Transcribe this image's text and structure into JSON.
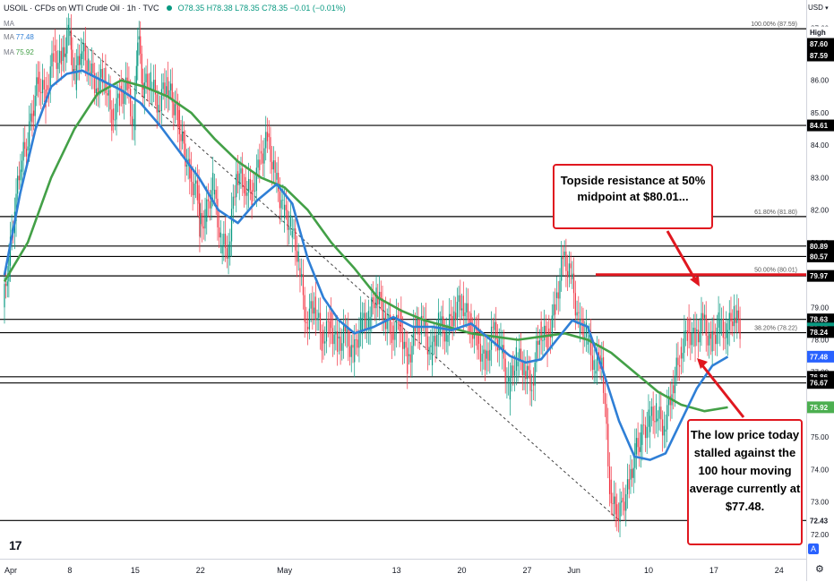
{
  "header": {
    "symbol_title": "USOIL · CFDs on WTI Crude Oil · 1h · TVC",
    "ohlc": "O78.35 H78.38 L78.35 C78.35 −0.01 (−0.01%)",
    "currency": "USD",
    "ma_rows": [
      {
        "label": "MA",
        "value": ""
      },
      {
        "label": "MA",
        "value": "77.48"
      },
      {
        "label": "MA",
        "value": "75.92"
      }
    ]
  },
  "chart_data": {
    "type": "candlestick",
    "price_range": [
      71.5,
      88.2
    ],
    "time_range_hours": [
      0,
      1740
    ],
    "price_ticks": [
      "87.60",
      "87.00",
      "86.00",
      "85.00",
      "84.00",
      "83.00",
      "82.00",
      "81.00",
      "80.00",
      "79.00",
      "78.00",
      "77.00",
      "76.00",
      "75.00",
      "74.00",
      "73.00",
      "72.00"
    ],
    "time_ticks": [
      {
        "label": "Apr",
        "h": 0
      },
      {
        "label": "8",
        "h": 168
      },
      {
        "label": "15",
        "h": 336
      },
      {
        "label": "22",
        "h": 504
      },
      {
        "label": "May",
        "h": 720
      },
      {
        "label": "13",
        "h": 1008
      },
      {
        "label": "20",
        "h": 1176
      },
      {
        "label": "27",
        "h": 1344
      },
      {
        "label": "Jun",
        "h": 1464
      },
      {
        "label": "10",
        "h": 1656
      },
      {
        "label": "17",
        "h": 1824
      },
      {
        "label": "24",
        "h": 1992
      }
    ],
    "price_badges": [
      {
        "label": "High",
        "price": 87.6,
        "color": "#ffffff",
        "text": "#131722"
      },
      {
        "label": "87.60",
        "price": 87.6,
        "color": "#000000",
        "text": "#ffffff"
      },
      {
        "label": "87.59",
        "price": 87.59,
        "color": "#000000",
        "text": "#ffffff"
      },
      {
        "label": "84.61",
        "price": 84.61,
        "color": "#000000",
        "text": "#ffffff"
      },
      {
        "label": "80.89",
        "price": 80.89,
        "color": "#000000",
        "text": "#ffffff"
      },
      {
        "label": "80.57",
        "price": 80.57,
        "color": "#000000",
        "text": "#ffffff"
      },
      {
        "label": "79.97",
        "price": 79.97,
        "color": "#000000",
        "text": "#ffffff"
      },
      {
        "label": "78.63",
        "price": 78.63,
        "color": "#000000",
        "text": "#ffffff"
      },
      {
        "label": "78.35",
        "price": 78.35,
        "color": "#089981",
        "text": "#ffffff"
      },
      {
        "label": "78.24",
        "price": 78.24,
        "color": "#000000",
        "text": "#ffffff"
      },
      {
        "label": "77.48",
        "price": 77.48,
        "color": "#2962ff",
        "text": "#ffffff"
      },
      {
        "label": "76.86",
        "price": 76.86,
        "color": "#000000",
        "text": "#ffffff"
      },
      {
        "label": "76.67",
        "price": 76.67,
        "color": "#000000",
        "text": "#ffffff"
      },
      {
        "label": "75.92",
        "price": 75.92,
        "color": "#4caf50",
        "text": "#ffffff"
      },
      {
        "label": "72.43",
        "price": 72.43,
        "color": "#ffffff",
        "text": "#131722"
      }
    ],
    "fib_levels": [
      {
        "label": "100.00% (87.59)",
        "price": 87.59
      },
      {
        "label": "61.80% (81.80)",
        "price": 81.8
      },
      {
        "label": "50.00% (80.01)",
        "price": 80.01
      },
      {
        "label": "38.20% (78.22)",
        "price": 78.22
      }
    ],
    "horizontal_lines": [
      87.59,
      84.61,
      81.8,
      80.89,
      80.57,
      79.97,
      78.63,
      78.22,
      76.86,
      76.67,
      72.43
    ],
    "trendline": [
      [
        168,
        87.5
      ],
      [
        1584,
        72.4
      ]
    ],
    "red_line_price": 80.01,
    "price_path": [
      [
        0,
        79.0
      ],
      [
        15,
        80.5
      ],
      [
        30,
        82.0
      ],
      [
        45,
        83.5
      ],
      [
        60,
        84.0
      ],
      [
        75,
        85.0
      ],
      [
        90,
        86.0
      ],
      [
        110,
        85.5
      ],
      [
        130,
        86.8
      ],
      [
        150,
        86.5
      ],
      [
        168,
        87.5
      ],
      [
        185,
        86.0
      ],
      [
        200,
        87.0
      ],
      [
        220,
        86.5
      ],
      [
        240,
        85.8
      ],
      [
        260,
        86.2
      ],
      [
        280,
        84.8
      ],
      [
        300,
        85.5
      ],
      [
        320,
        85.8
      ],
      [
        336,
        84.5
      ],
      [
        346,
        87.5
      ],
      [
        360,
        85.8
      ],
      [
        380,
        86.0
      ],
      [
        400,
        85.2
      ],
      [
        420,
        86.0
      ],
      [
        450,
        84.8
      ],
      [
        480,
        83.0
      ],
      [
        500,
        82.5
      ],
      [
        504,
        81.5
      ],
      [
        520,
        81.8
      ],
      [
        540,
        82.8
      ],
      [
        560,
        81.0
      ],
      [
        580,
        80.8
      ],
      [
        600,
        83.2
      ],
      [
        620,
        82.8
      ],
      [
        640,
        82.5
      ],
      [
        660,
        83.5
      ],
      [
        680,
        84.2
      ],
      [
        700,
        83.0
      ],
      [
        720,
        82.0
      ],
      [
        740,
        81.5
      ],
      [
        760,
        80.5
      ],
      [
        780,
        78.5
      ],
      [
        800,
        79.2
      ],
      [
        820,
        78.0
      ],
      [
        840,
        78.5
      ],
      [
        860,
        77.8
      ],
      [
        880,
        78.2
      ],
      [
        900,
        77.5
      ],
      [
        920,
        78.5
      ],
      [
        940,
        78.6
      ],
      [
        960,
        79.5
      ],
      [
        980,
        78.8
      ],
      [
        1000,
        78.2
      ],
      [
        1020,
        78.6
      ],
      [
        1040,
        77.2
      ],
      [
        1060,
        78.3
      ],
      [
        1080,
        78.5
      ],
      [
        1100,
        77.5
      ],
      [
        1120,
        78.5
      ],
      [
        1140,
        78.2
      ],
      [
        1160,
        78.9
      ],
      [
        1180,
        79.2
      ],
      [
        1200,
        78.5
      ],
      [
        1220,
        78.0
      ],
      [
        1240,
        77.2
      ],
      [
        1260,
        78.3
      ],
      [
        1280,
        77.8
      ],
      [
        1300,
        76.5
      ],
      [
        1320,
        77.5
      ],
      [
        1340,
        77.2
      ],
      [
        1360,
        76.6
      ],
      [
        1380,
        78.3
      ],
      [
        1400,
        78.0
      ],
      [
        1420,
        79.0
      ],
      [
        1440,
        80.5
      ],
      [
        1460,
        80.0
      ],
      [
        1480,
        78.5
      ],
      [
        1500,
        78.2
      ],
      [
        1520,
        77.2
      ],
      [
        1540,
        77.5
      ],
      [
        1560,
        73.5
      ],
      [
        1575,
        72.6
      ],
      [
        1590,
        72.8
      ],
      [
        1610,
        73.5
      ],
      [
        1625,
        74.5
      ],
      [
        1640,
        75.0
      ],
      [
        1660,
        75.5
      ],
      [
        1680,
        75.8
      ],
      [
        1700,
        75.3
      ],
      [
        1720,
        76.5
      ],
      [
        1740,
        77.5
      ],
      [
        1760,
        78.3
      ],
      [
        1780,
        78.0
      ],
      [
        1800,
        78.6
      ],
      [
        1820,
        77.8
      ],
      [
        1840,
        78.5
      ],
      [
        1860,
        78.2
      ],
      [
        1880,
        78.9
      ],
      [
        1895,
        78.35
      ]
    ],
    "ma_fast_path": [
      [
        0,
        80.0
      ],
      [
        40,
        82.5
      ],
      [
        80,
        84.5
      ],
      [
        120,
        85.8
      ],
      [
        160,
        86.2
      ],
      [
        200,
        86.3
      ],
      [
        250,
        86.0
      ],
      [
        300,
        85.7
      ],
      [
        350,
        85.3
      ],
      [
        400,
        84.6
      ],
      [
        450,
        83.8
      ],
      [
        500,
        83.0
      ],
      [
        550,
        82.0
      ],
      [
        600,
        81.6
      ],
      [
        650,
        82.3
      ],
      [
        700,
        82.8
      ],
      [
        740,
        82.2
      ],
      [
        780,
        80.5
      ],
      [
        820,
        79.3
      ],
      [
        860,
        78.6
      ],
      [
        900,
        78.2
      ],
      [
        950,
        78.4
      ],
      [
        1000,
        78.7
      ],
      [
        1050,
        78.4
      ],
      [
        1100,
        78.4
      ],
      [
        1150,
        78.3
      ],
      [
        1200,
        78.5
      ],
      [
        1250,
        78.0
      ],
      [
        1300,
        77.5
      ],
      [
        1340,
        77.3
      ],
      [
        1380,
        77.4
      ],
      [
        1420,
        78.0
      ],
      [
        1460,
        78.6
      ],
      [
        1500,
        78.4
      ],
      [
        1540,
        77.0
      ],
      [
        1580,
        75.5
      ],
      [
        1620,
        74.4
      ],
      [
        1660,
        74.3
      ],
      [
        1700,
        74.5
      ],
      [
        1740,
        75.5
      ],
      [
        1780,
        76.5
      ],
      [
        1820,
        77.2
      ],
      [
        1860,
        77.48
      ]
    ],
    "ma_slow_path": [
      [
        0,
        79.8
      ],
      [
        60,
        81.0
      ],
      [
        120,
        83.0
      ],
      [
        180,
        84.5
      ],
      [
        240,
        85.6
      ],
      [
        300,
        86.0
      ],
      [
        360,
        85.8
      ],
      [
        420,
        85.5
      ],
      [
        480,
        85.0
      ],
      [
        540,
        84.2
      ],
      [
        600,
        83.5
      ],
      [
        660,
        83.0
      ],
      [
        720,
        82.7
      ],
      [
        780,
        82.0
      ],
      [
        840,
        81.0
      ],
      [
        900,
        80.2
      ],
      [
        960,
        79.3
      ],
      [
        1020,
        78.9
      ],
      [
        1080,
        78.6
      ],
      [
        1140,
        78.4
      ],
      [
        1200,
        78.2
      ],
      [
        1260,
        78.1
      ],
      [
        1320,
        78.0
      ],
      [
        1380,
        78.1
      ],
      [
        1440,
        78.2
      ],
      [
        1500,
        78.0
      ],
      [
        1560,
        77.6
      ],
      [
        1620,
        77.0
      ],
      [
        1680,
        76.4
      ],
      [
        1740,
        76.0
      ],
      [
        1800,
        75.8
      ],
      [
        1860,
        75.92
      ]
    ]
  },
  "callouts": {
    "topside": "Topside resistance at 50% midpoint at $80.01...",
    "low": "The low price today stalled against the 100 hour moving average currently at $77.48."
  },
  "toolbar": {
    "auto_label": "A",
    "logo_text": "17"
  },
  "colors": {
    "up": "#089981",
    "down": "#f23645",
    "ma_fast": "#2f7fd6",
    "ma_slow": "#43a047",
    "annotation": "#e0171f"
  }
}
